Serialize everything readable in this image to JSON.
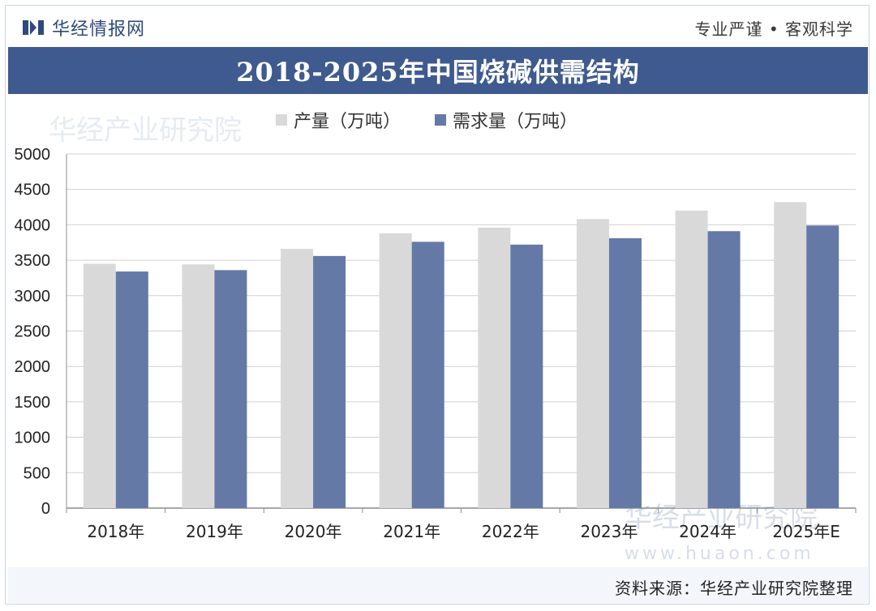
{
  "header": {
    "brand": "华经情报网",
    "slogan": "专业严谨 • 客观科学"
  },
  "colors": {
    "title_bg": "#3f5a8e",
    "production": "#d9d9d9",
    "demand": "#6479a6"
  },
  "watermark": {
    "text": "华经产业研究院",
    "url": "www.huaon.com"
  },
  "source_note": "资料来源：华经产业研究院整理",
  "chart_data": {
    "type": "bar",
    "title": "2018-2025年中国烧碱供需结构",
    "categories": [
      "2018年",
      "2019年",
      "2020年",
      "2021年",
      "2022年",
      "2023年",
      "2024年",
      "2025年E"
    ],
    "series": [
      {
        "name": "产量（万吨）",
        "values": [
          3450,
          3440,
          3660,
          3880,
          3960,
          4080,
          4200,
          4320
        ]
      },
      {
        "name": "需求量（万吨）",
        "values": [
          3340,
          3360,
          3560,
          3760,
          3720,
          3810,
          3910,
          3990
        ]
      }
    ],
    "ylim": [
      0,
      5000
    ],
    "yticks": [
      "0",
      "500",
      "1000",
      "1500",
      "2000",
      "2500",
      "3000",
      "3500",
      "4000",
      "4500",
      "5000"
    ],
    "grid": true,
    "legend": "top"
  }
}
